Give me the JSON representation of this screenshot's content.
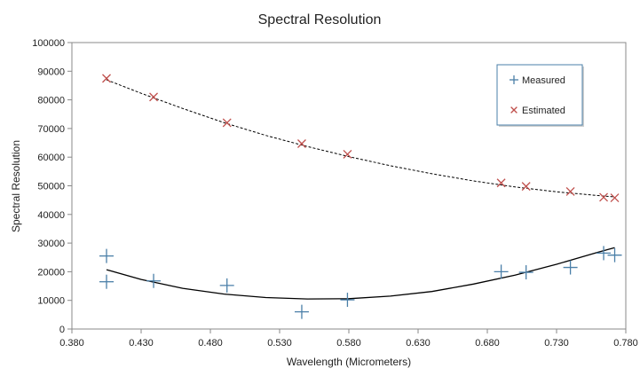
{
  "chart_data": {
    "type": "scatter",
    "title": "Spectral Resolution",
    "xlabel": "Wavelength (Micrometers)",
    "ylabel": "Spectral Resolution",
    "xlim": [
      0.38,
      0.78
    ],
    "ylim": [
      0,
      100000
    ],
    "x_ticks": [
      "0.380",
      "0.430",
      "0.480",
      "0.530",
      "0.580",
      "0.630",
      "0.680",
      "0.730",
      "0.780"
    ],
    "x_tick_values": [
      0.38,
      0.43,
      0.48,
      0.53,
      0.58,
      0.63,
      0.68,
      0.73,
      0.78
    ],
    "y_ticks": [
      "0",
      "10000",
      "20000",
      "30000",
      "40000",
      "50000",
      "60000",
      "70000",
      "80000",
      "90000",
      "100000"
    ],
    "y_tick_values": [
      0,
      10000,
      20000,
      30000,
      40000,
      50000,
      60000,
      70000,
      80000,
      90000,
      100000
    ],
    "grid": false,
    "legend_position": "top-right",
    "series": [
      {
        "name": "Measured",
        "marker": "plus",
        "color": "#4a7fa8",
        "x": [
          0.405,
          0.405,
          0.439,
          0.492,
          0.546,
          0.579,
          0.69,
          0.708,
          0.74,
          0.764,
          0.772
        ],
        "y": [
          16500,
          25500,
          16800,
          15200,
          6000,
          10200,
          20000,
          19800,
          21500,
          26500,
          25800
        ],
        "trendline": {
          "style": "solid",
          "color": "#000000",
          "x": [
            0.405,
            0.43,
            0.46,
            0.49,
            0.52,
            0.55,
            0.58,
            0.61,
            0.64,
            0.67,
            0.7,
            0.73,
            0.76,
            0.772
          ],
          "y": [
            20700,
            17300,
            14200,
            12200,
            11000,
            10500,
            10600,
            11500,
            13100,
            15700,
            18800,
            22600,
            26800,
            28400
          ]
        }
      },
      {
        "name": "Estimated",
        "marker": "x",
        "color": "#c0504d",
        "x": [
          0.405,
          0.439,
          0.492,
          0.546,
          0.579,
          0.69,
          0.708,
          0.74,
          0.764,
          0.772
        ],
        "y": [
          87500,
          81000,
          72000,
          64700,
          61000,
          51000,
          49800,
          48000,
          46000,
          45800
        ],
        "trendline": {
          "style": "dashed",
          "color": "#000000",
          "x": [
            0.405,
            0.43,
            0.46,
            0.49,
            0.52,
            0.55,
            0.58,
            0.61,
            0.64,
            0.67,
            0.7,
            0.73,
            0.76,
            0.772
          ],
          "y": [
            87000,
            82300,
            77000,
            72000,
            67600,
            63700,
            60200,
            57000,
            54200,
            51700,
            49600,
            47900,
            46600,
            46100
          ]
        }
      }
    ]
  }
}
